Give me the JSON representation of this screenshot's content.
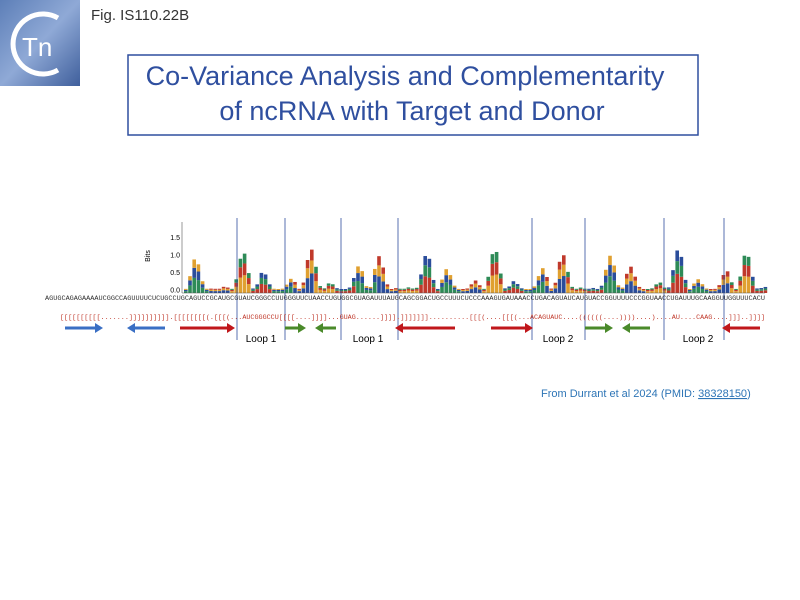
{
  "header": {
    "fig_label": "Fig. IS110.22B",
    "logo_text": "Tn",
    "title_line1": "Co-Variance Analysis and Complementarity",
    "title_line2": "of ncRNA with Target and Donor"
  },
  "figure": {
    "y_axis_label": "Bits",
    "y_ticks": [
      "1.5",
      "1.0",
      "0.5",
      "0.0"
    ],
    "sequence": "AGUGCAGAGAAAAUCGGCCAGUUUUCUCUGCCUGCAGUCCGCAUGCGUAUCGGGCCUUGGGUUCUAACCUGUGGCGUAGAUUUAUGCAGCGGACUGCCUUUCUCCCAAAGUGAUAAACCUGACAGUAUCAUGUACCGGUUUUCCCGGUAACCUGAUUUGCAAGGUUGGUUUCACU",
    "structure": "[[[[[[[[[[.......]]]]]]]]]].[[[[[[[[(.[[[(...AUCGGGCCU[[[[....]]]]...GUAG......]]]].]]]]]]]..........[[[(....[[[(...ACAGUAUC....((((((....))))....)....AU....CAAG....]]]..]]]]",
    "loop_labels": [
      "Loop 1",
      "Loop 1",
      "Loop 2",
      "Loop 2"
    ]
  },
  "citation": {
    "text": "From Durrant et al 2024 (PMID: ",
    "link": "38328150",
    "close": ")"
  }
}
